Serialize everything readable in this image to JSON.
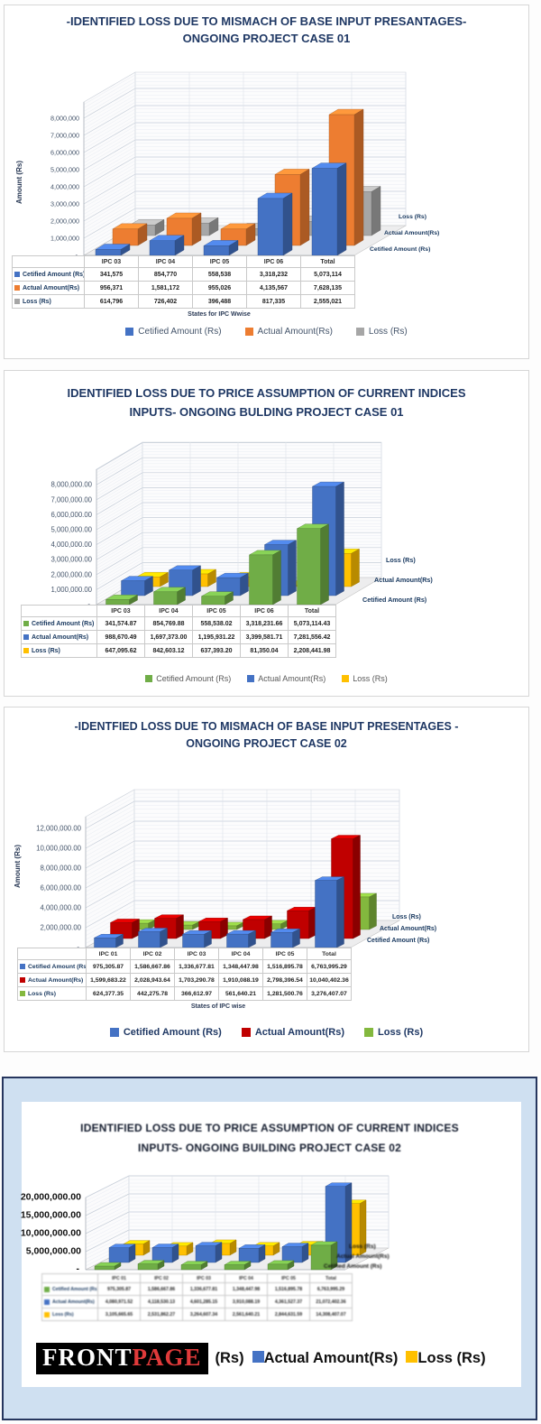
{
  "panels": [
    {
      "title_lines": [
        "-IDENTIFIED LOSS DUE TO MISMACH OF BASE INPUT PRESANTAGES-",
        "ONGOING PROJECT CASE 01"
      ],
      "y_axis_title": "Amount (Rs)",
      "caption": "States for IPC Wwise",
      "ticks": {
        "values": [
          1000000,
          2000000,
          3000000,
          4000000,
          5000000,
          6000000,
          7000000,
          8000000
        ],
        "labels": [
          "1,000,000",
          "2,000,000",
          "3,000,000",
          "4,000,000",
          "5,000,000",
          "6,000,000",
          "7,000,000",
          "8,000,000"
        ],
        "zero": "-"
      },
      "series_colors": [
        "#4472C4",
        "#ED7D31",
        "#A6A6A6"
      ],
      "depth_labels": [
        "Cetified Amount (Rs)",
        "Actual Amount(Rs)",
        "Loss (Rs)"
      ],
      "table": {
        "columns": [
          "IPC 03",
          "IPC 04",
          "IPC 05",
          "IPC 06",
          "Total"
        ],
        "rows": [
          {
            "label": "Cetified Amount (Rs)",
            "values": [
              "341,575",
              "854,770",
              "558,538",
              "3,318,232",
              "5,073,114"
            ]
          },
          {
            "label": "Actual Amount(Rs)",
            "values": [
              "956,371",
              "1,581,172",
              "955,026",
              "4,135,567",
              "7,628,135"
            ]
          },
          {
            "label": "Loss (Rs)",
            "values": [
              "614,796",
              "726,402",
              "396,488",
              "817,335",
              "2,555,021"
            ]
          }
        ]
      },
      "legend": [
        {
          "label": "Cetified Amount (Rs)",
          "color": "#4472C4"
        },
        {
          "label": "Actual Amount(Rs)",
          "color": "#ED7D31"
        },
        {
          "label": "Loss (Rs)",
          "color": "#A6A6A6"
        }
      ]
    },
    {
      "title_lines": [
        "IDENTIFIED LOSS DUE TO PRICE ASSUMPTION OF CURRENT INDICES",
        "INPUTS- ONGOING BULDING  PROJECT CASE 01"
      ],
      "ticks": {
        "values": [
          1000000,
          2000000,
          3000000,
          4000000,
          5000000,
          6000000,
          7000000,
          8000000
        ],
        "labels": [
          "1,000,000.00",
          "2,000,000.00",
          "3,000,000.00",
          "4,000,000.00",
          "5,000,000.00",
          "6,000,000.00",
          "7,000,000.00",
          "8,000,000.00"
        ],
        "zero": "-"
      },
      "series_colors": [
        "#70AD47",
        "#4472C4",
        "#FFC000"
      ],
      "depth_labels": [
        "Cetified Amount (Rs)",
        "Actual Amount(Rs)",
        "Loss (Rs)"
      ],
      "table": {
        "columns": [
          "IPC 03",
          "IPC 04",
          "IPC 05",
          "IPC 06",
          "Total"
        ],
        "rows": [
          {
            "label": "Cetified Amount (Rs)",
            "values": [
              "341,574.87",
              "854,769.88",
              "558,538.02",
              "3,318,231.66",
              "5,073,114.43"
            ]
          },
          {
            "label": "Actual Amount(Rs)",
            "values": [
              "988,670.49",
              "1,697,373.00",
              "1,195,931.22",
              "3,399,581.71",
              "7,281,556.42"
            ]
          },
          {
            "label": "Loss (Rs)",
            "values": [
              "647,095.62",
              "842,603.12",
              "637,393.20",
              "81,350.04",
              "2,208,441.98"
            ]
          }
        ]
      },
      "legend": [
        {
          "label": "Cetified Amount (Rs)",
          "color": "#70AD47"
        },
        {
          "label": "Actual Amount(Rs)",
          "color": "#4472C4"
        },
        {
          "label": "Loss (Rs)",
          "color": "#FFC000"
        }
      ]
    },
    {
      "title_lines": [
        "-IDENTFIED LOSS DUE TO MISMACH OF BASE INPUT PRESENTAGES -",
        "ONGOING PROJECT CASE 02"
      ],
      "y_axis_title": "Amount (Rs)",
      "caption": "States of IPC wise",
      "ticks": {
        "values": [
          2000000,
          4000000,
          6000000,
          8000000,
          10000000,
          12000000
        ],
        "labels": [
          "2,000,000.00",
          "4,000,000.00",
          "6,000,000.00",
          "8,000,000.00",
          "10,000,000.00",
          "12,000,000.00"
        ],
        "zero": "-"
      },
      "series_colors": [
        "#4472C4",
        "#C00000",
        "#83B83E"
      ],
      "depth_labels": [
        "Cetified Amount (Rs)",
        "Actual Amount(Rs)",
        "Loss (Rs)"
      ],
      "table": {
        "columns": [
          "IPC 01",
          "IPC 02",
          "IPC 03",
          "IPC 04",
          "IPC 05",
          "Total"
        ],
        "rows": [
          {
            "label": "Cetified Amount (Rs)",
            "values": [
              "975,305.87",
              "1,586,667.86",
              "1,336,677.81",
              "1,348,447.98",
              "1,516,895.78",
              "6,763,995.29"
            ]
          },
          {
            "label": "Actual Amount(Rs)",
            "values": [
              "1,599,683.22",
              "2,028,943.64",
              "1,703,290.78",
              "1,910,088.19",
              "2,798,396.54",
              "10,040,402.36"
            ]
          },
          {
            "label": "Loss (Rs)",
            "values": [
              "624,377.35",
              "442,275.78",
              "366,612.97",
              "561,640.21",
              "1,281,500.76",
              "3,276,407.07"
            ]
          }
        ]
      },
      "legend": [
        {
          "label": "Cetified Amount (Rs)",
          "color": "#4472C4"
        },
        {
          "label": "Actual Amount(Rs)",
          "color": "#C00000"
        },
        {
          "label": "Loss (Rs)",
          "color": "#83B83E"
        }
      ]
    },
    {
      "title_lines": [
        "IDENTIFIED LOSS DUE TO PRICE ASSUMPTION OF CURRENT INDICES",
        "INPUTS- ONGOING BUILDING  PROJECT CASE 02"
      ],
      "ticks": {
        "values": [
          5000000,
          10000000,
          15000000,
          20000000
        ],
        "labels": [
          "5,000,000.00",
          "10,000,000.00",
          "15,000,000.00",
          "20,000,000.00"
        ],
        "zero": "-"
      },
      "series_colors": [
        "#6FAD46",
        "#4472C4",
        "#FFC000"
      ],
      "depth_labels": [
        "Cetified Amount (Rs)",
        "Actual Amount(Rs)",
        "Loss (Rs)"
      ],
      "table": {
        "columns": [
          "IPC 01",
          "IPC 02",
          "IPC 03",
          "IPC 04",
          "IPC 05",
          "Total"
        ],
        "rows": [
          {
            "label": "Cetified Amount (Rs)",
            "values": [
              "975,305.87",
              "1,586,667.86",
              "1,336,677.81",
              "1,348,447.98",
              "1,516,895.78",
              "6,763,995.29"
            ]
          },
          {
            "label": "Actual Amount(Rs)",
            "values": [
              "4,080,971.52",
              "4,118,530.13",
              "4,601,285.15",
              "3,910,088.19",
              "4,361,527.37",
              "21,072,402.36"
            ]
          },
          {
            "label": "Loss (Rs)",
            "values": [
              "3,105,665.65",
              "2,531,862.27",
              "3,264,607.34",
              "2,561,640.21",
              "2,844,631.59",
              "14,308,407.07"
            ]
          }
        ]
      },
      "watermark": {
        "white": "FRONT",
        "red": "PAGE"
      },
      "legend": [
        {
          "label": "(Rs)",
          "color": ""
        },
        {
          "label": "Actual Amount(Rs)",
          "color": "#4472C4"
        },
        {
          "label": "Loss (Rs)",
          "color": "#FFC000"
        }
      ]
    }
  ],
  "chart_data": [
    {
      "type": "bar",
      "view": "3d-column",
      "title": "-IDENTIFIED LOSS DUE TO MISMACH OF BASE INPUT PRESANTAGES- ONGOING PROJECT CASE 01",
      "categories": [
        "IPC 03",
        "IPC 04",
        "IPC 05",
        "IPC 06",
        "Total"
      ],
      "series": [
        {
          "name": "Cetified Amount (Rs)",
          "values": [
            341575,
            854770,
            558538,
            3318232,
            5073114
          ]
        },
        {
          "name": "Actual Amount(Rs)",
          "values": [
            956371,
            1581172,
            955026,
            4135567,
            7628135
          ]
        },
        {
          "name": "Loss (Rs)",
          "values": [
            614796,
            726402,
            396488,
            817335,
            2555021
          ]
        }
      ],
      "xlabel": "States for IPC Wwise",
      "ylabel": "Amount (Rs)",
      "ylim": [
        0,
        8000000
      ],
      "grid": true,
      "legend_position": "bottom"
    },
    {
      "type": "bar",
      "view": "3d-column",
      "title": "IDENTIFIED LOSS DUE TO PRICE ASSUMPTION OF CURRENT INDICES INPUTS- ONGOING BULDING PROJECT CASE 01",
      "categories": [
        "IPC 03",
        "IPC 04",
        "IPC 05",
        "IPC 06",
        "Total"
      ],
      "series": [
        {
          "name": "Cetified Amount (Rs)",
          "values": [
            341574.87,
            854769.88,
            558538.02,
            3318231.66,
            5073114.43
          ]
        },
        {
          "name": "Actual Amount(Rs)",
          "values": [
            988670.49,
            1697373.0,
            1195931.22,
            3399581.71,
            7281556.42
          ]
        },
        {
          "name": "Loss (Rs)",
          "values": [
            647095.62,
            842603.12,
            637393.2,
            81350.04,
            2208441.98
          ]
        }
      ],
      "xlabel": "",
      "ylabel": "",
      "ylim": [
        0,
        8000000
      ],
      "grid": true,
      "legend_position": "bottom"
    },
    {
      "type": "bar",
      "view": "3d-column",
      "title": "-IDENTFIED LOSS DUE TO MISMACH OF BASE INPUT PRESENTAGES - ONGOING PROJECT CASE 02",
      "categories": [
        "IPC 01",
        "IPC 02",
        "IPC 03",
        "IPC 04",
        "IPC 05",
        "Total"
      ],
      "series": [
        {
          "name": "Cetified Amount (Rs)",
          "values": [
            975305.87,
            1586667.86,
            1336677.81,
            1348447.98,
            1516895.78,
            6763995.29
          ]
        },
        {
          "name": "Actual Amount(Rs)",
          "values": [
            1599683.22,
            2028943.64,
            1703290.78,
            1910088.19,
            2798396.54,
            10040402.36
          ]
        },
        {
          "name": "Loss (Rs)",
          "values": [
            624377.35,
            442275.78,
            366612.97,
            561640.21,
            1281500.76,
            3276407.07
          ]
        }
      ],
      "xlabel": "States of IPC wise",
      "ylabel": "Amount (Rs)",
      "ylim": [
        0,
        12000000
      ],
      "grid": true,
      "legend_position": "bottom"
    },
    {
      "type": "bar",
      "view": "3d-column",
      "title": "IDENTIFIED LOSS DUE TO PRICE ASSUMPTION OF CURRENT INDICES INPUTS- ONGOING BUILDING PROJECT CASE 02",
      "categories": [
        "IPC 01",
        "IPC 02",
        "IPC 03",
        "IPC 04",
        "IPC 05",
        "Total"
      ],
      "series": [
        {
          "name": "Cetified Amount (Rs)",
          "values": [
            975305.87,
            1586667.86,
            1336677.81,
            1348447.98,
            1516895.78,
            6763995.29
          ]
        },
        {
          "name": "Actual Amount(Rs)",
          "values": [
            4080971.52,
            4118530.13,
            4601285.15,
            3910088.19,
            4361527.37,
            21072402.36
          ]
        },
        {
          "name": "Loss (Rs)",
          "values": [
            3105665.65,
            2531862.27,
            3264607.34,
            2561640.21,
            2844631.59,
            14308407.07
          ]
        }
      ],
      "xlabel": "",
      "ylabel": "",
      "ylim": [
        0,
        20000000
      ],
      "grid": true,
      "legend_position": "bottom"
    }
  ]
}
